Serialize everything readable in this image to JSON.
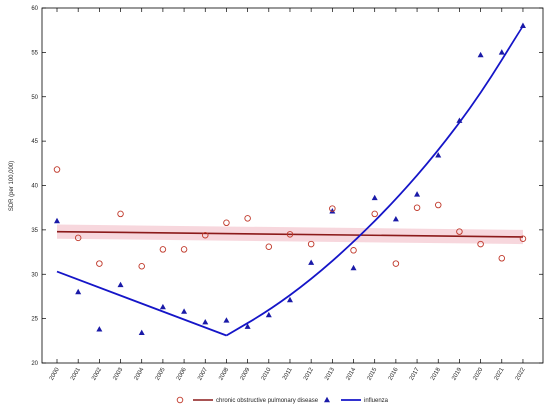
{
  "chart_data": {
    "type": "scatter",
    "title": "",
    "xlabel": "",
    "ylabel": "SDR (per 100,000)",
    "ylim": [
      20,
      60
    ],
    "yticks": [
      20,
      25,
      30,
      35,
      40,
      45,
      50,
      55,
      60
    ],
    "x": [
      2000,
      2001,
      2002,
      2003,
      2004,
      2005,
      2006,
      2007,
      2008,
      2009,
      2010,
      2011,
      2012,
      2013,
      2014,
      2015,
      2016,
      2017,
      2018,
      2019,
      2020,
      2021,
      2022
    ],
    "x_tick_labels": [
      "2000",
      "2001",
      "2002",
      "2003",
      "2004",
      "2005",
      "2006",
      "2007",
      "2008",
      "2009",
      "2010",
      "2011",
      "2012",
      "2013",
      "2014",
      "2015",
      "2016",
      "2017",
      "2018",
      "2019",
      "2020",
      "2021",
      "2022"
    ],
    "grid": false,
    "legend_position": "bottom-center",
    "series": [
      {
        "name": "chronic obstructive pulmonary disease",
        "marker": "open-circle",
        "marker_color": "#c0392b",
        "line_color": "#8b1a1a",
        "band_color": "#f4c6cf",
        "values": [
          41.8,
          34.1,
          31.2,
          36.8,
          30.9,
          32.8,
          32.8,
          34.4,
          35.8,
          36.3,
          33.1,
          34.5,
          33.4,
          37.4,
          32.7,
          36.8,
          31.2,
          37.5,
          37.8,
          34.8,
          33.4,
          31.8,
          34.0
        ],
        "trend": [
          [
            2000,
            34.8
          ],
          [
            2022,
            34.2
          ]
        ]
      },
      {
        "name": "influenza",
        "marker": "filled-triangle",
        "marker_color": "#1a1aa8",
        "line_color": "#1515c8",
        "values": [
          36.0,
          28.0,
          23.8,
          28.8,
          23.4,
          26.3,
          25.8,
          24.6,
          24.8,
          24.1,
          25.4,
          27.1,
          31.3,
          37.1,
          30.7,
          38.6,
          36.2,
          39.0,
          43.4,
          47.3,
          54.7,
          55.0,
          58.0
        ],
        "trend_segments": [
          [
            [
              2000,
              30.3
            ],
            [
              2008,
              23.1
            ]
          ],
          [
            [
              2008,
              23.1
            ],
            [
              2010,
              25.9
            ],
            [
              2012,
              29.4
            ],
            [
              2014,
              33.6
            ],
            [
              2016,
              38.4
            ],
            [
              2018,
              43.9
            ],
            [
              2020,
              50.3
            ],
            [
              2022,
              58.0
            ]
          ]
        ]
      }
    ]
  }
}
